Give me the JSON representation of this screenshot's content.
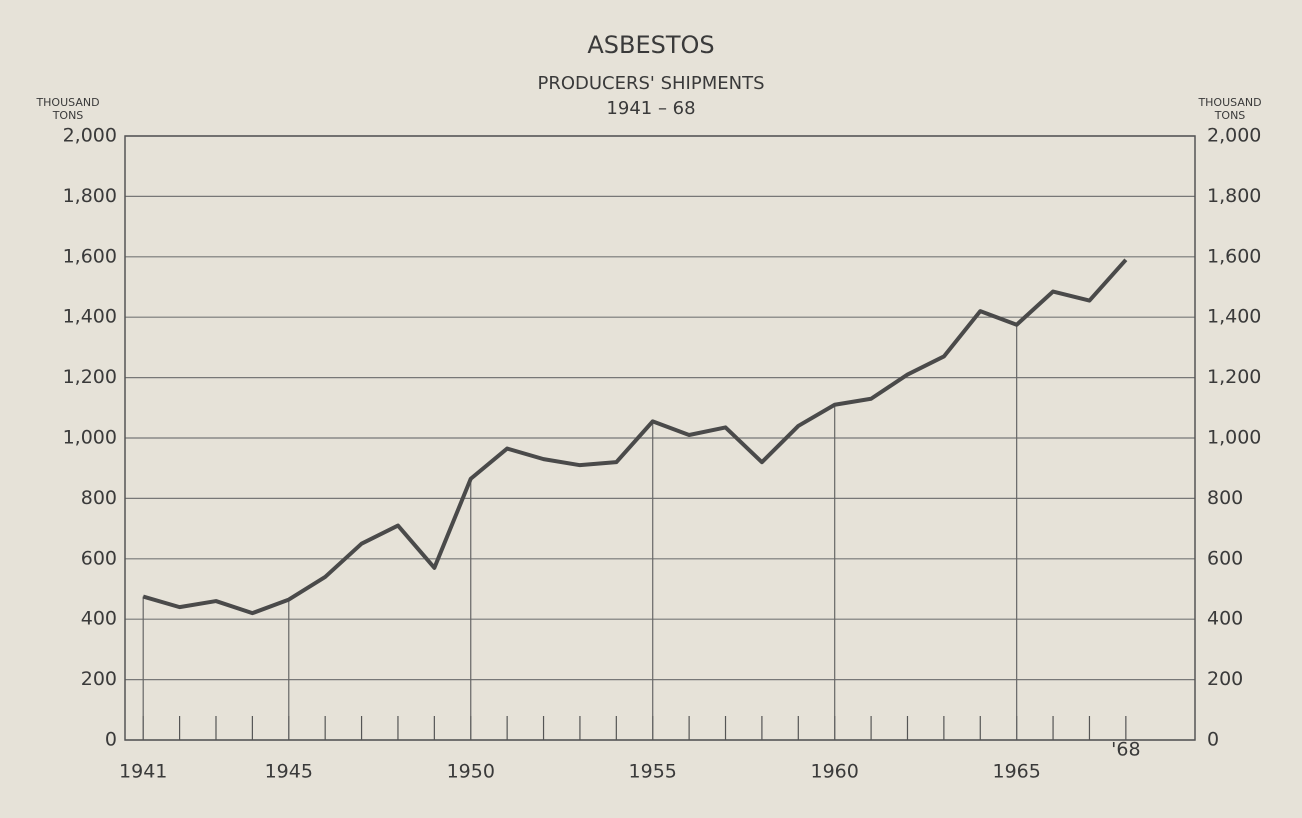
{
  "chart_data": {
    "type": "line",
    "title": "ASBESTOS",
    "subtitle": [
      "PRODUCERS' SHIPMENTS",
      "1941 – 68"
    ],
    "y_label": [
      "THOUSAND",
      "TONS"
    ],
    "x": [
      1941,
      1942,
      1943,
      1944,
      1945,
      1946,
      1947,
      1948,
      1949,
      1950,
      1951,
      1952,
      1953,
      1954,
      1955,
      1956,
      1957,
      1958,
      1959,
      1960,
      1961,
      1962,
      1963,
      1964,
      1965,
      1966,
      1967,
      1968
    ],
    "series": [
      {
        "name": "Producers' shipments",
        "color": "#4a4a4a",
        "values": [
          475,
          440,
          460,
          420,
          465,
          540,
          650,
          710,
          570,
          865,
          965,
          930,
          910,
          920,
          1055,
          1010,
          1035,
          920,
          1040,
          1110,
          1130,
          1210,
          1270,
          1420,
          1375,
          1485,
          1455,
          1590
        ]
      }
    ],
    "xlim": [
      1940.5,
      1969.9
    ],
    "xticks": [
      1941,
      1945,
      1950,
      1955,
      1960,
      1965,
      {
        "value": 1968,
        "label": "'68"
      }
    ],
    "ylim": [
      0,
      2000
    ],
    "yticks": [
      0,
      {
        "value": 200,
        "label": "200"
      },
      {
        "value": 400,
        "label": "400"
      },
      {
        "value": 600,
        "label": "600"
      },
      {
        "value": 800,
        "label": "800"
      },
      {
        "value": 1000,
        "label": "1,000"
      },
      {
        "value": 1200,
        "label": "1,200"
      },
      {
        "value": 1400,
        "label": "1,400"
      },
      {
        "value": 1600,
        "label": "1,600"
      },
      {
        "value": 1800,
        "label": "1,800"
      },
      {
        "value": 2000,
        "label": "2,000"
      }
    ],
    "grid": true
  }
}
